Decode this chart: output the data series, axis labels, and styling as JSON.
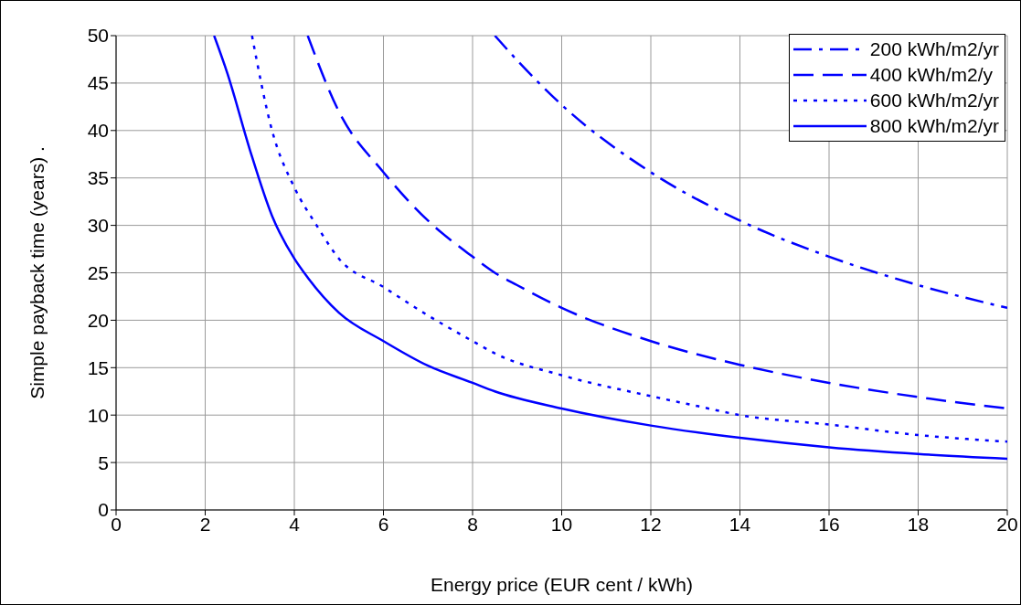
{
  "chart_data": {
    "type": "line",
    "xlabel": "Energy price (EUR cent / kWh)",
    "ylabel": "Simple payback time (years) .",
    "xlim": [
      0,
      20
    ],
    "xticks": [
      0,
      2,
      4,
      6,
      8,
      10,
      12,
      14,
      16,
      18,
      20
    ],
    "ylim": [
      0,
      50
    ],
    "yticks": [
      0,
      5,
      10,
      15,
      20,
      25,
      30,
      35,
      40,
      45,
      50
    ],
    "grid": true,
    "legend": "top right",
    "marker": "none",
    "series": [
      {
        "name": "200 kWh/m2/yr",
        "color": "#0000ff",
        "line_style": "dashdot",
        "x": [
          8.5,
          9,
          10,
          12,
          14,
          16,
          18,
          20
        ],
        "values": [
          50,
          47.4,
          42.7,
          35.6,
          30.5,
          26.7,
          23.7,
          21.3
        ]
      },
      {
        "name": "400 kWh/m2/y",
        "color": "#0000ff",
        "line_style": "dashed",
        "x": [
          4.3,
          5,
          6,
          7,
          8,
          8.5,
          9,
          10,
          12,
          14,
          16,
          18,
          20
        ],
        "values": [
          50,
          42,
          35.6,
          30.5,
          26.7,
          25,
          23.7,
          21.3,
          17.8,
          15.3,
          13.4,
          11.9,
          10.7
        ]
      },
      {
        "name": "600 kWh/m2/yr",
        "color": "#0000ff",
        "line_style": "dotted",
        "x": [
          3.05,
          3.5,
          4,
          4.5,
          5,
          6,
          7,
          8,
          8.5,
          10,
          12,
          13,
          14,
          16,
          18,
          20
        ],
        "values": [
          50,
          40,
          34,
          30,
          26.5,
          23.5,
          20.5,
          17.8,
          16.5,
          14.2,
          12,
          11,
          10,
          9,
          7.9,
          7.2
        ]
      },
      {
        "name": "800 kWh/m2/yr",
        "color": "#0000ff",
        "line_style": "solid",
        "x": [
          2.2,
          2.5,
          3,
          3.5,
          4,
          4.3,
          5,
          6,
          7,
          8,
          8.5,
          10,
          12,
          14,
          16,
          18,
          20
        ],
        "values": [
          50,
          46,
          38,
          31,
          26.5,
          24.5,
          20.8,
          17.8,
          15.2,
          13.4,
          12.5,
          10.7,
          8.9,
          7.6,
          6.6,
          5.9,
          5.4
        ]
      }
    ]
  }
}
